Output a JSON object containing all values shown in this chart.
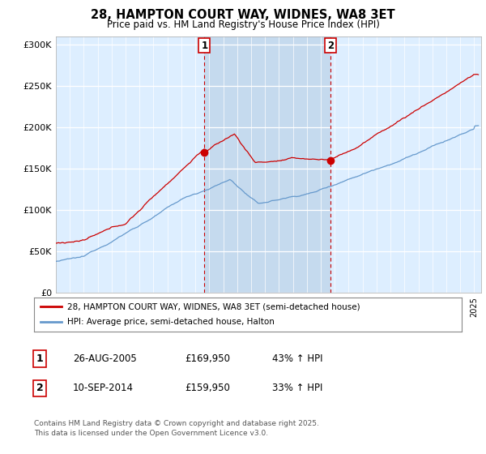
{
  "title": "28, HAMPTON COURT WAY, WIDNES, WA8 3ET",
  "subtitle": "Price paid vs. HM Land Registry's House Price Index (HPI)",
  "legend_line1": "28, HAMPTON COURT WAY, WIDNES, WA8 3ET (semi-detached house)",
  "legend_line2": "HPI: Average price, semi-detached house, Halton",
  "ann1_label": "1",
  "ann1_date": "26-AUG-2005",
  "ann1_price": "£169,950",
  "ann1_change": "43% ↑ HPI",
  "ann2_label": "2",
  "ann2_date": "10-SEP-2014",
  "ann2_price": "£159,950",
  "ann2_change": "33% ↑ HPI",
  "footer": "Contains HM Land Registry data © Crown copyright and database right 2025.\nThis data is licensed under the Open Government Licence v3.0.",
  "ylim": [
    0,
    310000
  ],
  "yticks": [
    0,
    50000,
    100000,
    150000,
    200000,
    250000,
    300000
  ],
  "ytick_labels": [
    "£0",
    "£50K",
    "£100K",
    "£150K",
    "£200K",
    "£250K",
    "£300K"
  ],
  "sale1_x": 2005.65,
  "sale1_y": 169950,
  "sale2_x": 2014.69,
  "sale2_y": 159950,
  "line_color_red": "#cc0000",
  "line_color_blue": "#6699cc",
  "plot_bg": "#ddeeff",
  "shade_bg": "#c5daee",
  "fig_bg": "#ffffff",
  "xmin": 1995,
  "xmax": 2025.5
}
